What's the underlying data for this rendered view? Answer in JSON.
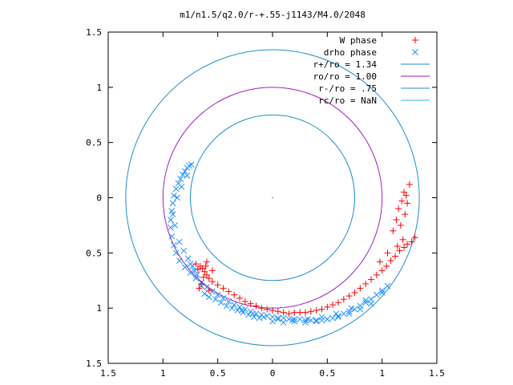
{
  "chart_data": {
    "type": "scatter",
    "title": "m1/n1.5/q2.0/r-+.55-j1143/M4.0/2048",
    "xlim": [
      -1.5,
      1.5
    ],
    "ylim": [
      -1.5,
      1.5
    ],
    "y_axis_direction": "downward-positive (top edge labeled 1.5, bottom edge labeled 1.5)",
    "grid": false,
    "legend_position": "top-right",
    "x_ticks": [
      {
        "value": -1.5,
        "label": "1.5"
      },
      {
        "value": -1.0,
        "label": "1"
      },
      {
        "value": -0.5,
        "label": "0.5"
      },
      {
        "value": 0.0,
        "label": "0"
      },
      {
        "value": 0.5,
        "label": "0.5"
      },
      {
        "value": 1.0,
        "label": "1"
      },
      {
        "value": 1.5,
        "label": "1.5"
      }
    ],
    "y_ticks": [
      {
        "value": -1.5,
        "label": "1.5"
      },
      {
        "value": -1.0,
        "label": "1"
      },
      {
        "value": -0.5,
        "label": "0.5"
      },
      {
        "value": 0.0,
        "label": "0"
      },
      {
        "value": 0.5,
        "label": "0.5"
      },
      {
        "value": 1.0,
        "label": "1"
      },
      {
        "value": 1.5,
        "label": "1.5"
      }
    ],
    "series": [
      {
        "name": "W phase",
        "marker": "+",
        "color": "#ff0000",
        "x": [
          1.3,
          1.27,
          1.23,
          1.2,
          1.16,
          1.12,
          1.08,
          1.04,
          1.0,
          0.95,
          0.9,
          0.85,
          0.8,
          0.75,
          0.7,
          0.65,
          0.6,
          0.55,
          0.5,
          0.45,
          0.4,
          0.35,
          0.3,
          0.25,
          0.2,
          0.15,
          0.1,
          0.05,
          0.0,
          -0.05,
          -0.1,
          -0.15,
          -0.2,
          -0.25,
          -0.3,
          -0.35,
          -0.4,
          -0.45,
          -0.5,
          -0.55,
          -0.58,
          -0.6,
          -0.62,
          -0.64,
          -0.66,
          -0.68,
          -0.7,
          -0.6,
          -0.55,
          -0.63,
          -0.65,
          -0.67,
          -0.58,
          -0.61,
          1.2,
          1.22,
          1.18,
          1.15,
          1.13,
          1.25,
          1.1,
          1.17,
          1.21,
          1.19,
          1.14,
          1.23,
          1.05,
          0.98
        ],
        "y": [
          0.36,
          0.4,
          0.42,
          0.45,
          0.48,
          0.53,
          0.57,
          0.62,
          0.66,
          0.7,
          0.74,
          0.78,
          0.82,
          0.86,
          0.89,
          0.92,
          0.95,
          0.97,
          0.99,
          1.01,
          1.02,
          1.03,
          1.04,
          1.04,
          1.04,
          1.05,
          1.04,
          1.03,
          1.02,
          1.01,
          1.0,
          0.98,
          0.96,
          0.94,
          0.91,
          0.88,
          0.85,
          0.82,
          0.79,
          0.76,
          0.73,
          0.7,
          0.67,
          0.64,
          0.62,
          0.65,
          0.6,
          0.58,
          0.66,
          0.72,
          0.78,
          0.82,
          0.84,
          0.62,
          -0.05,
          -0.02,
          0.03,
          0.1,
          0.2,
          -0.12,
          0.3,
          0.25,
          0.15,
          0.38,
          0.44,
          0.05,
          0.5,
          0.58
        ]
      },
      {
        "name": "drho phase",
        "marker": "x",
        "color": "#1e90ff",
        "x": [
          1.05,
          1.0,
          0.95,
          0.9,
          0.85,
          0.8,
          0.75,
          0.7,
          0.65,
          0.6,
          0.55,
          0.5,
          0.45,
          0.4,
          0.35,
          0.3,
          0.25,
          0.2,
          0.15,
          0.1,
          0.05,
          0.0,
          -0.05,
          -0.1,
          -0.15,
          -0.2,
          -0.25,
          -0.3,
          -0.35,
          -0.4,
          -0.45,
          -0.5,
          -0.55,
          -0.6,
          -0.65,
          -0.7,
          -0.75,
          -0.8,
          -0.85,
          -0.88,
          -0.9,
          -0.92,
          -0.93,
          -0.93,
          -0.92,
          -0.91,
          -0.9,
          -0.88,
          -0.86,
          -0.84,
          -0.82,
          -0.8,
          -0.78,
          -0.76,
          -0.74,
          -0.78,
          -0.83,
          -0.87,
          -0.91,
          -0.89,
          -0.85,
          -0.81,
          -0.77,
          -0.73,
          -0.69,
          -0.65,
          -0.71,
          -0.75,
          -0.62,
          -0.58,
          -0.52,
          -0.47,
          -0.42,
          -0.37,
          -0.32,
          -0.27,
          -0.22,
          -0.17,
          -0.12,
          0.0,
          0.1,
          0.2,
          0.3,
          0.4,
          0.5,
          0.6,
          0.7,
          0.8,
          0.9,
          1.0,
          0.85,
          0.72,
          0.58,
          0.45,
          0.32,
          0.18,
          0.05,
          -0.08,
          -0.18,
          -0.28
        ],
        "y": [
          0.8,
          0.84,
          0.88,
          0.92,
          0.95,
          0.98,
          1.01,
          1.03,
          1.05,
          1.07,
          1.09,
          1.1,
          1.11,
          1.11,
          1.11,
          1.11,
          1.1,
          1.1,
          1.1,
          1.09,
          1.09,
          1.08,
          1.07,
          1.06,
          1.05,
          1.03,
          1.01,
          0.99,
          0.97,
          0.94,
          0.91,
          0.88,
          0.85,
          0.81,
          0.77,
          0.73,
          0.68,
          0.63,
          0.57,
          0.5,
          0.43,
          0.35,
          0.27,
          0.2,
          0.12,
          0.05,
          -0.02,
          -0.08,
          -0.13,
          -0.17,
          -0.21,
          -0.24,
          -0.27,
          -0.29,
          -0.3,
          -0.2,
          -0.1,
          0.0,
          0.15,
          0.25,
          0.4,
          0.48,
          0.55,
          0.62,
          0.7,
          0.8,
          0.66,
          0.6,
          0.87,
          0.9,
          0.92,
          0.95,
          0.98,
          1.0,
          1.02,
          1.04,
          1.06,
          1.08,
          1.09,
          1.12,
          1.13,
          1.12,
          1.13,
          1.12,
          1.1,
          1.08,
          1.05,
          1.01,
          0.96,
          0.86,
          0.93,
          1.0,
          1.05,
          1.08,
          1.1,
          1.11,
          1.1,
          1.08,
          1.05,
          1.02
        ]
      },
      {
        "name": "r+/ro = 1.34",
        "type": "circle",
        "radius": 1.34,
        "color": "#1f8ecd"
      },
      {
        "name": "ro/ro = 1.00",
        "type": "circle",
        "radius": 1.0,
        "color": "#a020c0"
      },
      {
        "name": "r-/ro = .75",
        "type": "circle",
        "radius": 0.75,
        "color": "#1f8ecd"
      },
      {
        "name": "rc/ro = NaN",
        "type": "circle",
        "radius": null,
        "color": "#20c0e0"
      }
    ]
  }
}
